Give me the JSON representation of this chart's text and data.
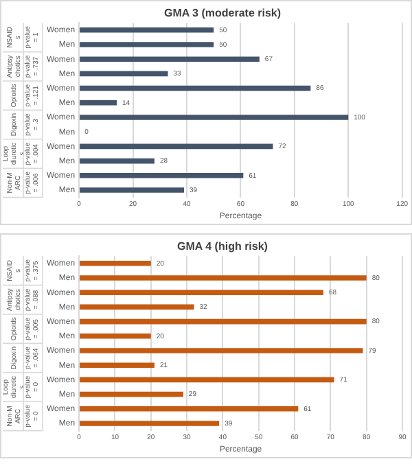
{
  "chart_data": [
    {
      "type": "bar",
      "orientation": "horizontal",
      "title": "GMA 3 (moderate risk)",
      "xlabel": "Percentage",
      "categories": [
        "Women",
        "Men",
        "Women",
        "Men",
        "Women",
        "Men",
        "Women",
        "Men",
        "Women",
        "Men",
        "Women",
        "Men"
      ],
      "values": [
        50,
        50,
        67,
        33,
        86,
        14,
        100,
        0,
        72,
        28,
        61,
        39
      ],
      "color": "#44546a",
      "xlim": [
        0,
        120
      ],
      "xticks": [
        0,
        20,
        40,
        60,
        80,
        100,
        120
      ],
      "grid": "x",
      "data_labels": true,
      "annotations": [
        "NSAIDs",
        "p-value = 1",
        "Antipsychotics",
        "p-value = .737",
        "Opioids",
        "p-value = .121",
        "Digoxin",
        "p-value = .3",
        "Loop diuretics",
        "p-value = .004",
        "Non-MARC",
        "p-value = .006"
      ]
    },
    {
      "type": "bar",
      "orientation": "horizontal",
      "title": "GMA 4 (high risk)",
      "xlabel": "Percentage",
      "categories": [
        "Women",
        "Men",
        "Women",
        "Men",
        "Women",
        "Men",
        "Women",
        "Men",
        "Women",
        "Men",
        "Women",
        "Men"
      ],
      "values": [
        20,
        80,
        68,
        32,
        80,
        20,
        79,
        21,
        71,
        29,
        61,
        39
      ],
      "color": "#c55a11",
      "xlim": [
        0,
        90
      ],
      "xticks": [
        0,
        10,
        20,
        30,
        40,
        50,
        60,
        70,
        80,
        90
      ],
      "grid": "x",
      "data_labels": true,
      "annotations": [
        "NSAIDs",
        "p-value = .375",
        "Antipsychotics",
        "p-value = .088",
        "Opioids",
        "p-value = .005",
        "Digoxin",
        "p-value = .064",
        "Loop diuretics",
        "p-value = 0",
        "Non-MARC",
        "p-value = 0"
      ]
    }
  ]
}
